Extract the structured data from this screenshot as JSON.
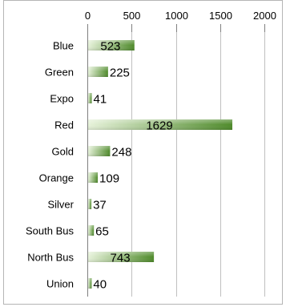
{
  "chart_data": {
    "type": "bar",
    "orientation": "horizontal",
    "categories": [
      "Blue",
      "Green",
      "Expo",
      "Red",
      "Gold",
      "Orange",
      "Silver",
      "South Bus",
      "North Bus",
      "Union"
    ],
    "values": [
      523,
      225,
      41,
      1629,
      248,
      109,
      37,
      65,
      743,
      40
    ],
    "value_labels": [
      "523",
      "225",
      "41",
      "1629",
      "248",
      "109",
      "37",
      "65",
      "743",
      "40"
    ],
    "xlim": [
      0,
      2000
    ],
    "x_ticks": [
      0,
      500,
      1000,
      1500,
      2000
    ],
    "x_tick_labels": [
      "0",
      "500",
      "1000",
      "1500",
      "2000"
    ],
    "x_axis_position": "top",
    "grid": true,
    "legend": "none",
    "bar_color_light": "#e6f2d9",
    "bar_color_dark": "#4e8a2a"
  }
}
